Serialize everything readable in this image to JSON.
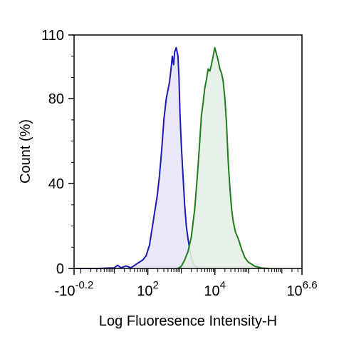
{
  "chart_data": {
    "type": "area",
    "xlabel": "Log Fluoresence Intensity-H",
    "ylabel": "Count  (%)",
    "x_scale": "log",
    "xlim": [
      -0.2,
      6.6
    ],
    "ylim": [
      0,
      110
    ],
    "grid": false,
    "x_ticks": [
      {
        "pos": -0.2,
        "base": "-10",
        "exp": "-0.2"
      },
      {
        "pos": 2,
        "base": "10",
        "exp": "2"
      },
      {
        "pos": 4,
        "base": "10",
        "exp": "4"
      },
      {
        "pos": 6.6,
        "base": "10",
        "exp": "6.6"
      }
    ],
    "y_ticks": [
      0,
      40,
      80,
      110
    ],
    "series": [
      {
        "color": "#1a1ab4",
        "fill": "#e6e6f8",
        "points": [
          [
            -0.2,
            0
          ],
          [
            0.5,
            0
          ],
          [
            1.0,
            0.3
          ],
          [
            1.1,
            1.5
          ],
          [
            1.2,
            0.3
          ],
          [
            1.35,
            1.2
          ],
          [
            1.5,
            0.3
          ],
          [
            1.7,
            2.5
          ],
          [
            1.85,
            4
          ],
          [
            1.95,
            6
          ],
          [
            2.05,
            11
          ],
          [
            2.12,
            18
          ],
          [
            2.2,
            26
          ],
          [
            2.28,
            34
          ],
          [
            2.35,
            44
          ],
          [
            2.42,
            57
          ],
          [
            2.48,
            70
          ],
          [
            2.55,
            80
          ],
          [
            2.6,
            84
          ],
          [
            2.65,
            88
          ],
          [
            2.7,
            95
          ],
          [
            2.73,
            100
          ],
          [
            2.77,
            96
          ],
          [
            2.8,
            102
          ],
          [
            2.85,
            104
          ],
          [
            2.9,
            100
          ],
          [
            2.93,
            90
          ],
          [
            2.96,
            73
          ],
          [
            3.0,
            58
          ],
          [
            3.05,
            44
          ],
          [
            3.1,
            30
          ],
          [
            3.15,
            20
          ],
          [
            3.2,
            14
          ],
          [
            3.25,
            9
          ],
          [
            3.3,
            5
          ],
          [
            3.36,
            2
          ],
          [
            3.45,
            0.5
          ],
          [
            3.6,
            0
          ]
        ]
      },
      {
        "color": "#1e7d1e",
        "fill": "#e4f0e4",
        "points": [
          [
            2.9,
            0
          ],
          [
            3.0,
            1
          ],
          [
            3.1,
            4
          ],
          [
            3.2,
            8
          ],
          [
            3.3,
            15
          ],
          [
            3.4,
            28
          ],
          [
            3.48,
            44
          ],
          [
            3.55,
            60
          ],
          [
            3.6,
            72
          ],
          [
            3.65,
            78
          ],
          [
            3.7,
            85
          ],
          [
            3.75,
            89
          ],
          [
            3.8,
            94
          ],
          [
            3.85,
            93
          ],
          [
            3.9,
            96
          ],
          [
            3.95,
            100
          ],
          [
            4.0,
            104
          ],
          [
            4.05,
            101
          ],
          [
            4.1,
            98
          ],
          [
            4.15,
            94
          ],
          [
            4.2,
            92
          ],
          [
            4.25,
            88
          ],
          [
            4.3,
            80
          ],
          [
            4.35,
            68
          ],
          [
            4.4,
            50
          ],
          [
            4.45,
            38
          ],
          [
            4.5,
            28
          ],
          [
            4.55,
            22
          ],
          [
            4.62,
            17
          ],
          [
            4.7,
            14
          ],
          [
            4.8,
            9
          ],
          [
            4.9,
            5
          ],
          [
            5.0,
            3
          ],
          [
            5.2,
            1
          ],
          [
            5.4,
            0.2
          ],
          [
            5.6,
            0
          ]
        ]
      }
    ]
  }
}
